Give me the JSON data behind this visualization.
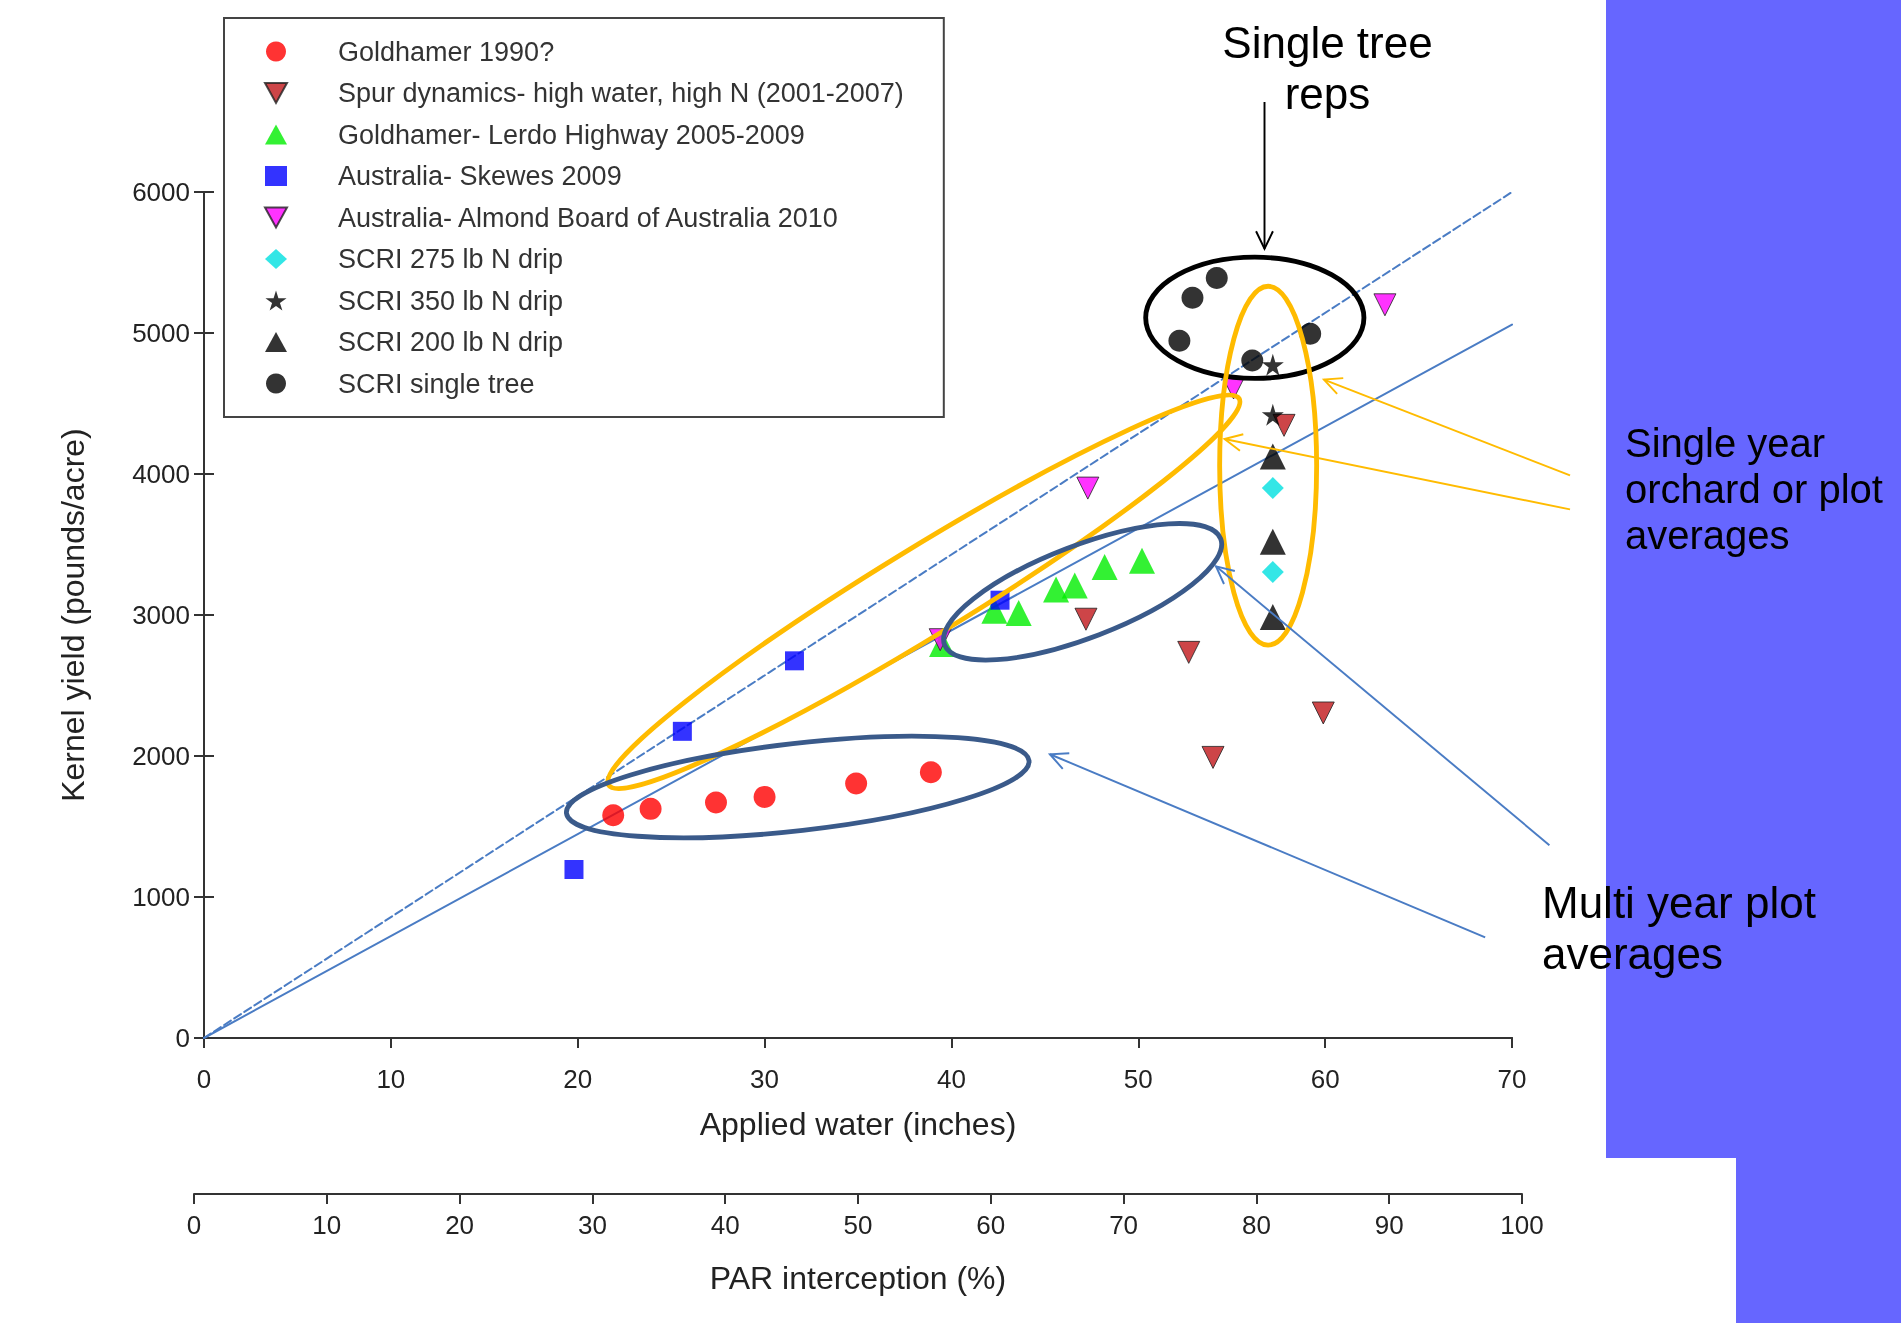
{
  "chart_data": {
    "type": "scatter",
    "xlabel": "Applied water (inches)",
    "ylabel": "Kernel yield (pounds/acre)",
    "x2label": "PAR interception (%)",
    "xlim": [
      0,
      70
    ],
    "xticks": [
      0,
      10,
      20,
      30,
      40,
      50,
      60,
      70
    ],
    "ylim": [
      0,
      6000
    ],
    "yticks": [
      0,
      1000,
      2000,
      3000,
      4000,
      5000,
      6000
    ],
    "x2lim": [
      0,
      100
    ],
    "x2ticks": [
      0,
      10,
      20,
      30,
      40,
      50,
      60,
      70,
      80,
      90,
      100
    ],
    "legend": "top left",
    "annotations": [
      "Single tree reps",
      "Single year orchard or plot averages",
      "Multi year plot averages"
    ],
    "series": [
      {
        "type": "line",
        "color": "#4a7cc4",
        "line_style": "dashed",
        "marker": "none",
        "x": [
          0,
          70
        ],
        "values": [
          0,
          6000
        ]
      },
      {
        "type": "line",
        "color": "#4a7cc4",
        "line_style": "solid",
        "marker": "none",
        "x": [
          0,
          70
        ],
        "values": [
          0,
          5060
        ]
      },
      {
        "name": "Goldhamer 1990?",
        "color": "#ff0000",
        "marker": "circle",
        "x": [
          21.9,
          23.9,
          27.4,
          30.0,
          34.9,
          38.9
        ],
        "values": [
          1580,
          1625,
          1670,
          1710,
          1805,
          1885
        ]
      },
      {
        "name": "Spur dynamics- high water, high N (2001-2007)",
        "color": "#c0161a",
        "marker": "triangle-down",
        "x": [
          47.2,
          52.7,
          54.0,
          57.8,
          59.9
        ],
        "values": [
          2970,
          2735,
          1990,
          4345,
          2305
        ]
      },
      {
        "name": "Goldhamer- Lerdo Highway 2005-2009",
        "color": "#00ee00",
        "marker": "triangle",
        "x": [
          39.5,
          42.3,
          43.6,
          45.6,
          46.6,
          48.2,
          50.2
        ],
        "values": [
          2795,
          3030,
          3015,
          3180,
          3210,
          3340,
          3385
        ]
      },
      {
        "name": "Australia- Skewes 2009",
        "color": "#0000ff",
        "marker": "square",
        "x": [
          19.8,
          25.6,
          31.6,
          42.6
        ],
        "values": [
          1195,
          2175,
          2675,
          3105
        ]
      },
      {
        "name": "Australia- Almond Board of Australia 2010",
        "color": "#ff00ff",
        "marker": "triangle-down",
        "x": [
          39.4,
          47.3,
          55.1,
          63.2
        ],
        "values": [
          2825,
          3900,
          4610,
          5200
        ]
      },
      {
        "name": "SCRI 275 lb N drip",
        "color": "#00e0e0",
        "marker": "diamond",
        "x": [
          57.2,
          57.2
        ],
        "values": [
          3900,
          3305
        ]
      },
      {
        "name": "SCRI 350 lb N drip",
        "color": "#000000",
        "marker": "star",
        "x": [
          57.2,
          57.2
        ],
        "values": [
          4775,
          4420
        ]
      },
      {
        "name": "SCRI 200 lb N drip",
        "color": "#000000",
        "marker": "triangle",
        "x": [
          57.2,
          57.2,
          57.2
        ],
        "values": [
          4125,
          3520,
          2985
        ]
      },
      {
        "name": "SCRI single tree",
        "color": "#000000",
        "marker": "circle",
        "x": [
          54.2,
          52.9,
          52.2,
          56.1,
          59.2
        ],
        "values": [
          5390,
          5250,
          4945,
          4805,
          4995
        ]
      }
    ]
  }
}
